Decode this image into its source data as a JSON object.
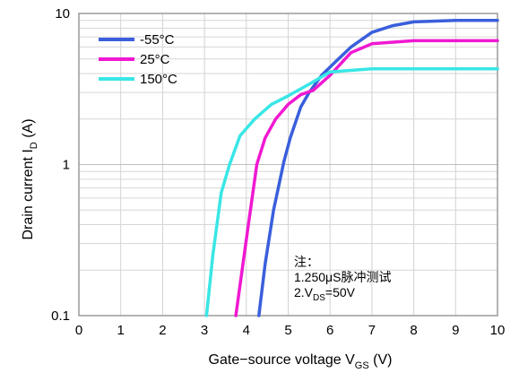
{
  "chart_data": {
    "type": "line",
    "xlabel": "Gate−source voltage V",
    "xlabel_sub": "GS",
    "xlabel_unit": " (V)",
    "ylabel": "Drain current I",
    "ylabel_sub": "D",
    "ylabel_unit": " (A)",
    "xlim": [
      0,
      10
    ],
    "ylim": [
      0.1,
      10
    ],
    "yscale": "log",
    "grid": true,
    "legend_position": "top-left",
    "x_ticks": [
      "0",
      "1",
      "2",
      "3",
      "4",
      "5",
      "6",
      "7",
      "8",
      "9",
      "10"
    ],
    "y_ticks": [
      {
        "value": 10,
        "label": "10"
      },
      {
        "value": 1,
        "label": "1"
      },
      {
        "value": 0.1,
        "label": "0.1"
      }
    ],
    "series": [
      {
        "name": "-55°C",
        "color": "#3a5fdc",
        "points": [
          [
            4.3,
            0.1
          ],
          [
            4.45,
            0.22
          ],
          [
            4.65,
            0.5
          ],
          [
            4.9,
            1.05
          ],
          [
            5.05,
            1.5
          ],
          [
            5.3,
            2.4
          ],
          [
            5.5,
            3.0
          ],
          [
            5.8,
            3.9
          ],
          [
            6.1,
            4.7
          ],
          [
            6.5,
            6.0
          ],
          [
            7.0,
            7.5
          ],
          [
            7.5,
            8.3
          ],
          [
            8.0,
            8.8
          ],
          [
            9.0,
            9.0
          ],
          [
            10.0,
            9.0
          ]
        ]
      },
      {
        "name": "25°C",
        "color": "#f018d2",
        "points": [
          [
            3.75,
            0.1
          ],
          [
            3.9,
            0.2
          ],
          [
            4.05,
            0.4
          ],
          [
            4.25,
            1.0
          ],
          [
            4.45,
            1.5
          ],
          [
            4.7,
            2.0
          ],
          [
            5.0,
            2.5
          ],
          [
            5.3,
            2.9
          ],
          [
            5.6,
            3.1
          ],
          [
            6.0,
            3.9
          ],
          [
            6.5,
            5.5
          ],
          [
            7.0,
            6.3
          ],
          [
            8.0,
            6.6
          ],
          [
            10.0,
            6.6
          ]
        ]
      },
      {
        "name": "150°C",
        "color": "#39e6e6",
        "points": [
          [
            3.05,
            0.1
          ],
          [
            3.2,
            0.25
          ],
          [
            3.4,
            0.65
          ],
          [
            3.6,
            1.0
          ],
          [
            3.85,
            1.55
          ],
          [
            4.2,
            2.0
          ],
          [
            4.6,
            2.5
          ],
          [
            5.0,
            2.85
          ],
          [
            5.5,
            3.4
          ],
          [
            6.0,
            4.1
          ],
          [
            7.0,
            4.3
          ],
          [
            10.0,
            4.3
          ]
        ]
      }
    ],
    "annotation": {
      "title": "注：",
      "line1": "1.250μS脉冲测试",
      "line2_prefix": "2.V",
      "line2_sub": "DS",
      "line2_suffix": "=50V"
    }
  }
}
